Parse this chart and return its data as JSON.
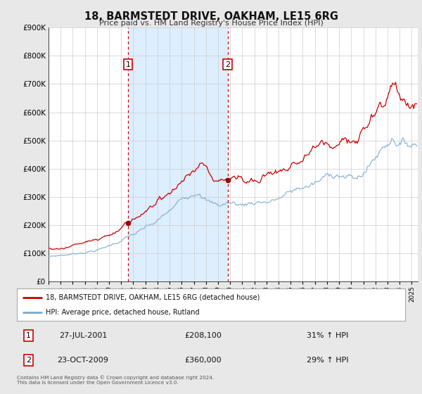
{
  "title": "18, BARMSTEDT DRIVE, OAKHAM, LE15 6RG",
  "subtitle": "Price paid vs. HM Land Registry's House Price Index (HPI)",
  "legend_line1": "18, BARMSTEDT DRIVE, OAKHAM, LE15 6RG (detached house)",
  "legend_line2": "HPI: Average price, detached house, Rutland",
  "sale1_date": "27-JUL-2001",
  "sale1_price": "£208,100",
  "sale1_hpi": "31% ↑ HPI",
  "sale1_label": "1",
  "sale1_year": 2001.57,
  "sale1_val": 208100,
  "sale2_date": "23-OCT-2009",
  "sale2_price": "£360,000",
  "sale2_hpi": "29% ↑ HPI",
  "sale2_label": "2",
  "sale2_year": 2009.8,
  "sale2_val": 360000,
  "footer": "Contains HM Land Registry data © Crown copyright and database right 2024.\nThis data is licensed under the Open Government Licence v3.0.",
  "price_line_color": "#cc0000",
  "hpi_line_color": "#7aaad0",
  "shaded_region_color": "#ddeeff",
  "vline_color": "#cc0000",
  "marker_color": "#990000",
  "ylim": [
    0,
    900000
  ],
  "yticks": [
    0,
    100000,
    200000,
    300000,
    400000,
    500000,
    600000,
    700000,
    800000,
    900000
  ],
  "ytick_labels": [
    "£0",
    "£100K",
    "£200K",
    "£300K",
    "£400K",
    "£500K",
    "£600K",
    "£700K",
    "£800K",
    "£900K"
  ],
  "xmin": 1995.0,
  "xmax": 2025.5,
  "background_color": "#e8e8e8",
  "plot_bg_color": "#ffffff",
  "grid_color": "#cccccc"
}
